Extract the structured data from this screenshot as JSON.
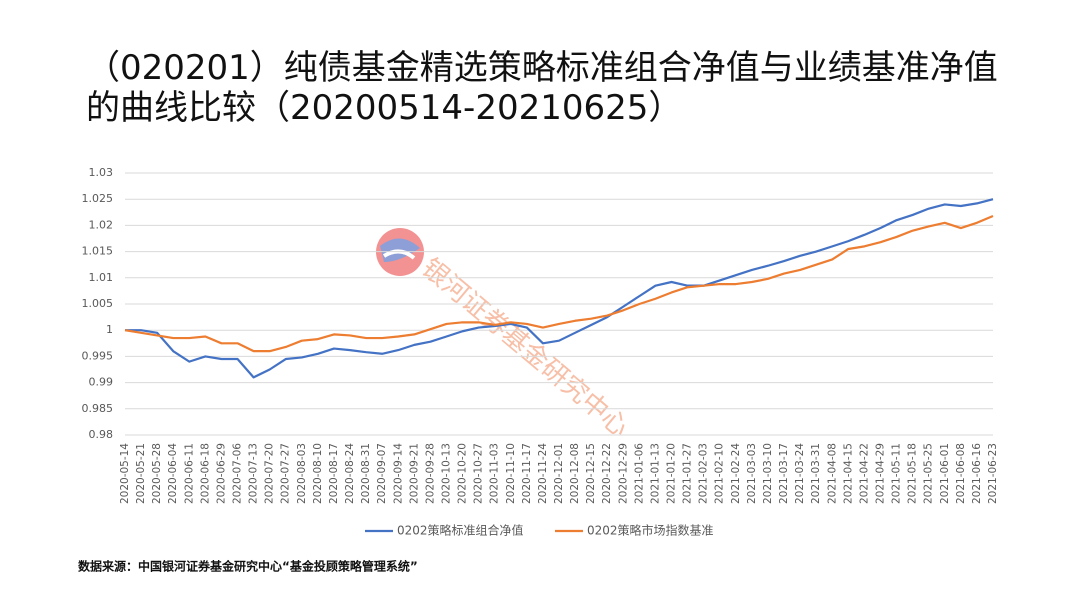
{
  "chart_data": {
    "type": "line",
    "title": "（020201）纯债基金精选策略标准组合净值与业绩基准净值的曲线比较（20200514-20210625）",
    "source": "数据来源：中国银河证券基金研究中心“基金投顾策略管理系统”",
    "watermark": "银河证券基金研究中心",
    "categories": [
      "2020-05-14",
      "2020-05-21",
      "2020-05-28",
      "2020-06-04",
      "2020-06-11",
      "2020-06-18",
      "2020-06-29",
      "2020-07-06",
      "2020-07-13",
      "2020-07-20",
      "2020-07-27",
      "2020-08-03",
      "2020-08-10",
      "2020-08-17",
      "2020-08-24",
      "2020-08-31",
      "2020-09-07",
      "2020-09-14",
      "2020-09-21",
      "2020-09-28",
      "2020-10-13",
      "2020-10-20",
      "2020-10-27",
      "2020-11-03",
      "2020-11-10",
      "2020-11-17",
      "2020-11-24",
      "2020-12-01",
      "2020-12-08",
      "2020-12-15",
      "2020-12-22",
      "2020-12-29",
      "2021-01-06",
      "2021-01-13",
      "2021-01-20",
      "2021-01-27",
      "2021-02-03",
      "2021-02-10",
      "2021-02-24",
      "2021-03-03",
      "2021-03-10",
      "2021-03-17",
      "2021-03-24",
      "2021-03-31",
      "2021-04-08",
      "2021-04-15",
      "2021-04-22",
      "2021-04-29",
      "2021-05-11",
      "2021-05-18",
      "2021-05-25",
      "2021-06-01",
      "2021-06-08",
      "2021-06-16",
      "2021-06-23"
    ],
    "series": [
      {
        "name": "0202策略标准组合净值",
        "color": "#4472c4",
        "values": [
          1.0,
          1.0,
          0.9995,
          0.996,
          0.994,
          0.995,
          0.9945,
          0.9945,
          0.991,
          0.9925,
          0.9945,
          0.9948,
          0.9955,
          0.9965,
          0.9962,
          0.9958,
          0.9955,
          0.9962,
          0.9972,
          0.9978,
          0.9988,
          0.9998,
          1.0005,
          1.0008,
          1.0012,
          1.0005,
          0.9975,
          0.998,
          0.9995,
          1.001,
          1.0025,
          1.0045,
          1.0065,
          1.0085,
          1.0092,
          1.0085,
          1.0085,
          1.0095,
          1.0105,
          1.0115,
          1.0123,
          1.0132,
          1.0142,
          1.015,
          1.016,
          1.017,
          1.0182,
          1.0195,
          1.021,
          1.022,
          1.0232,
          1.024,
          1.0237,
          1.0242,
          1.025
        ]
      },
      {
        "name": "0202策略市场指数基准",
        "color": "#ed7d31",
        "values": [
          1.0,
          0.9995,
          0.999,
          0.9985,
          0.9985,
          0.9988,
          0.9975,
          0.9975,
          0.996,
          0.996,
          0.9968,
          0.998,
          0.9983,
          0.9992,
          0.999,
          0.9985,
          0.9985,
          0.9988,
          0.9992,
          1.0002,
          1.0012,
          1.0015,
          1.0015,
          1.001,
          1.0015,
          1.0012,
          1.0005,
          1.0012,
          1.0018,
          1.0022,
          1.0028,
          1.0038,
          1.005,
          1.006,
          1.0072,
          1.0082,
          1.0085,
          1.0088,
          1.0088,
          1.0092,
          1.0098,
          1.0108,
          1.0115,
          1.0125,
          1.0135,
          1.0155,
          1.016,
          1.0168,
          1.0178,
          1.019,
          1.0198,
          1.0205,
          1.0195,
          1.0205,
          1.0218
        ]
      }
    ],
    "ylim": [
      0.98,
      1.03
    ],
    "yticks": [
      0.98,
      0.985,
      0.99,
      0.995,
      1,
      1.005,
      1.01,
      1.015,
      1.02,
      1.025,
      1.03
    ],
    "grid": true,
    "legend": "bottom"
  }
}
